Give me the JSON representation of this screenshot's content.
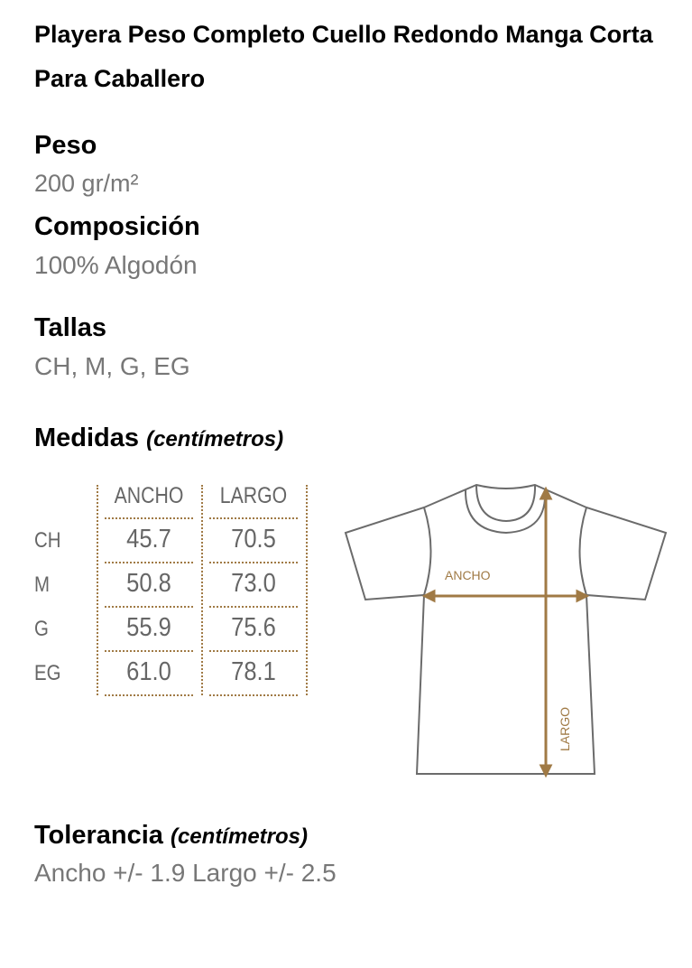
{
  "title": "Playera Peso Completo Cuello Redondo Manga Corta Para Caballero",
  "peso": {
    "label": "Peso",
    "value": "200 gr/m²"
  },
  "composicion": {
    "label": "Composición",
    "value": "100% Algodón"
  },
  "tallas": {
    "label": "Tallas",
    "value": "CH, M, G, EG"
  },
  "medidas": {
    "label": "Medidas",
    "unit": "(centímetros)",
    "columns": [
      "ANCHO",
      "LARGO"
    ],
    "rows": [
      {
        "size": "CH",
        "ancho": "45.7",
        "largo": "70.5"
      },
      {
        "size": "M",
        "ancho": "50.8",
        "largo": "73.0"
      },
      {
        "size": "G",
        "ancho": "55.9",
        "largo": "75.6"
      },
      {
        "size": "EG",
        "ancho": "61.0",
        "largo": "78.1"
      }
    ]
  },
  "diagram": {
    "ancho_label": "ANCHO",
    "largo_label": "LARGO",
    "accent": "#a07a45",
    "outline": "#6b6b6b"
  },
  "tolerancia": {
    "label": "Tolerancia",
    "unit": "(centímetros)",
    "value": "Ancho +/- 1.9 Largo +/- 2.5"
  }
}
